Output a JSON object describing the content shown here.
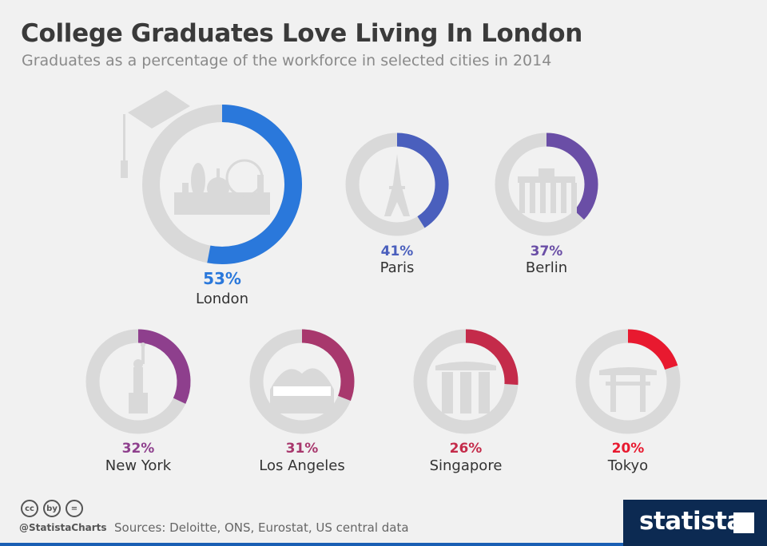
{
  "header": {
    "title": "College Graduates Love Living In London",
    "subtitle": "Graduates as a percentage of the workforce in selected cities in 2014"
  },
  "chart_data": {
    "type": "donut",
    "unit": "%",
    "track_color": "#d9d9d9",
    "items": [
      {
        "city": "London",
        "value": 53,
        "label": "53%",
        "color": "#2a78db",
        "icon": "london-skyline-icon"
      },
      {
        "city": "Paris",
        "value": 41,
        "label": "41%",
        "color": "#4a5fbd",
        "icon": "eiffel-tower-icon"
      },
      {
        "city": "Berlin",
        "value": 37,
        "label": "37%",
        "color": "#6a4ea6",
        "icon": "brandenburg-gate-icon"
      },
      {
        "city": "New York",
        "value": 32,
        "label": "32%",
        "color": "#8e3f8d",
        "icon": "statue-of-liberty-icon"
      },
      {
        "city": "Los Angeles",
        "value": 31,
        "label": "31%",
        "color": "#a8386d",
        "icon": "hollywood-sign-icon"
      },
      {
        "city": "Singapore",
        "value": 26,
        "label": "26%",
        "color": "#c42b4a",
        "icon": "marina-bay-sands-icon"
      },
      {
        "city": "Tokyo",
        "value": 20,
        "label": "20%",
        "color": "#e8192f",
        "icon": "torii-gate-icon"
      }
    ]
  },
  "footer": {
    "handle": "@StatistaCharts",
    "sources": "Sources: Deloitte, ONS, Eurostat, US central data",
    "brand": "statista",
    "cc_icons": [
      "cc",
      "by",
      "="
    ]
  }
}
